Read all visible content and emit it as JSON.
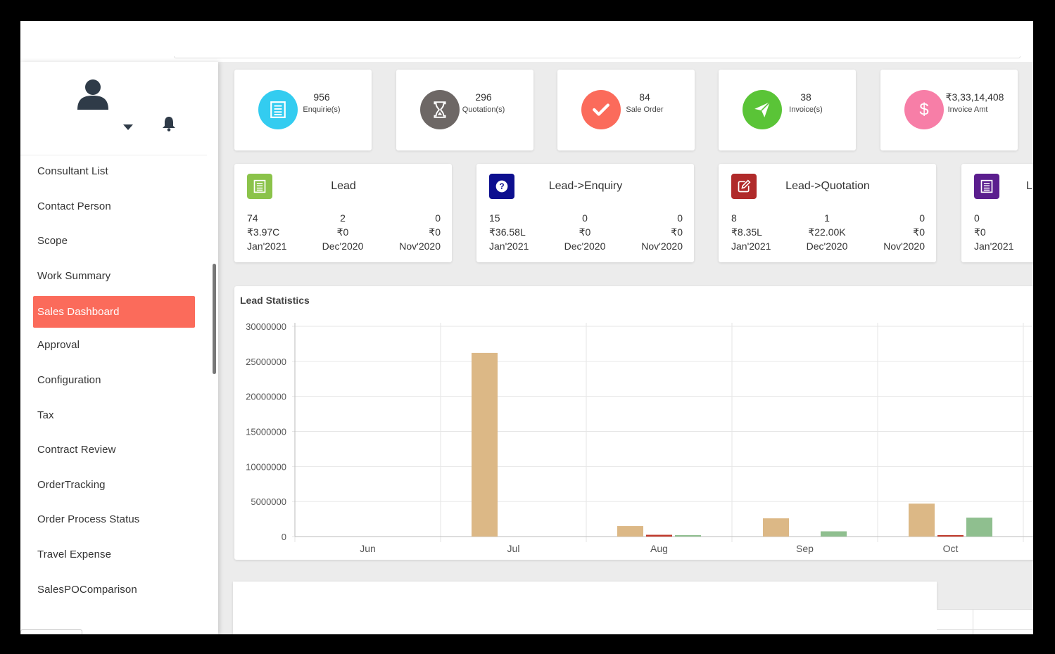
{
  "sidebar": {
    "menu": [
      {
        "label": "Consultant List",
        "active": false
      },
      {
        "label": "Contact Person",
        "active": false
      },
      {
        "label": "Scope",
        "active": false
      },
      {
        "label": "Work Summary",
        "active": false
      },
      {
        "label": "Sales Dashboard",
        "active": true
      },
      {
        "label": "Approval",
        "active": false
      },
      {
        "label": "Configuration",
        "active": false
      },
      {
        "label": "Tax",
        "active": false
      },
      {
        "label": "Contract Review",
        "active": false
      },
      {
        "label": "OrderTracking",
        "active": false
      },
      {
        "label": "Order Process Status",
        "active": false
      },
      {
        "label": "Travel Expense",
        "active": false
      },
      {
        "label": "SalesPOComparison",
        "active": false
      }
    ]
  },
  "stats": [
    {
      "value": "956",
      "label": "Enquirie(s)",
      "icon": "list-icon",
      "color": "#33ccf0"
    },
    {
      "value": "296",
      "label": "Quotation(s)",
      "icon": "hourglass-icon",
      "color": "#6d6765"
    },
    {
      "value": "84",
      "label": "Sale Order",
      "icon": "check-icon",
      "color": "#fb6b5b"
    },
    {
      "value": "38",
      "label": "Invoice(s)",
      "icon": "paper-plane-icon",
      "color": "#5ac437"
    },
    {
      "value": "₹3,33,14,408",
      "label": "Invoice Amt",
      "icon": "dollar-icon",
      "color": "#f77ea7"
    }
  ],
  "leads": [
    {
      "title": "Lead",
      "icon": "list-icon",
      "color": "#8bc34a",
      "cols": [
        [
          "74",
          "₹3.97C",
          "Jan'2021"
        ],
        [
          "2",
          "₹0",
          "Dec'2020"
        ],
        [
          "0",
          "₹0",
          "Nov'2020"
        ]
      ]
    },
    {
      "title": "Lead->Enquiry",
      "icon": "question-icon",
      "color": "#0d0f8f",
      "cols": [
        [
          "15",
          "₹36.58L",
          "Jan'2021"
        ],
        [
          "0",
          "₹0",
          "Dec'2020"
        ],
        [
          "0",
          "₹0",
          "Nov'2020"
        ]
      ]
    },
    {
      "title": "Lead->Quotation",
      "icon": "edit-icon",
      "color": "#b02a2a",
      "cols": [
        [
          "8",
          "₹8.35L",
          "Jan'2021"
        ],
        [
          "1",
          "₹22.00K",
          "Dec'2020"
        ],
        [
          "0",
          "₹0",
          "Nov'2020"
        ]
      ]
    },
    {
      "title": "L",
      "icon": "list-icon",
      "color": "#5b1e8e",
      "cols": [
        [
          "0",
          "₹0",
          "Jan'2021"
        ],
        [
          "",
          "",
          ""
        ],
        [
          "",
          "",
          ""
        ]
      ]
    }
  ],
  "chart_data": {
    "type": "bar",
    "title": "Lead Statistics",
    "categories": [
      "Jun",
      "Jul",
      "Aug",
      "Sep",
      "Oct"
    ],
    "ylim": [
      0,
      30000000
    ],
    "yticks": [
      "30000000",
      "25000000",
      "20000000",
      "15000000",
      "10000000",
      "5000000",
      "0"
    ],
    "grid": true,
    "series": [
      {
        "color": "#dcb886",
        "values": [
          0,
          26200000,
          1500000,
          2600000,
          4700000
        ]
      },
      {
        "color": "#c0392b",
        "values": [
          0,
          0,
          250000,
          0,
          200000
        ]
      },
      {
        "color": "#8fbf8f",
        "values": [
          0,
          0,
          150000,
          750000,
          2700000
        ]
      }
    ]
  }
}
